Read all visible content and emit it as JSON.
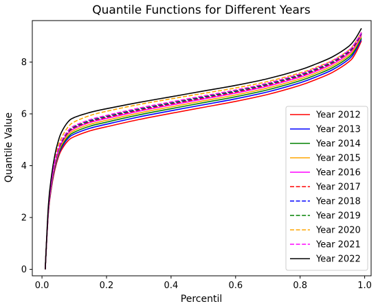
{
  "chart_data": {
    "type": "line",
    "title": "Quantile Functions for Different Years",
    "xlabel": "Percentil",
    "ylabel": "Quantile Value",
    "xlim": [
      -0.03,
      1.02
    ],
    "ylim": [
      -0.25,
      9.6
    ],
    "xticks": [
      0.0,
      0.2,
      0.4,
      0.6,
      0.8,
      1.0
    ],
    "xtick_labels": [
      "0.0",
      "0.2",
      "0.4",
      "0.6",
      "0.8",
      "1.0"
    ],
    "yticks": [
      0,
      2,
      4,
      6,
      8
    ],
    "ytick_labels": [
      "0",
      "2",
      "4",
      "6",
      "8"
    ],
    "grid": false,
    "legend_position": "lower-right",
    "x": [
      0.01,
      0.02,
      0.03,
      0.04,
      0.05,
      0.06,
      0.08,
      0.1,
      0.15,
      0.2,
      0.3,
      0.4,
      0.5,
      0.6,
      0.7,
      0.8,
      0.85,
      0.9,
      0.95,
      0.97,
      0.99
    ],
    "series": [
      {
        "name": "Year 2012",
        "color": "#ff0000",
        "dash": "solid",
        "values": [
          0.0,
          2.2,
          3.2,
          3.85,
          4.3,
          4.6,
          4.95,
          5.12,
          5.35,
          5.5,
          5.78,
          6.02,
          6.25,
          6.48,
          6.75,
          7.1,
          7.33,
          7.6,
          8.0,
          8.3,
          8.82
        ]
      },
      {
        "name": "Year 2013",
        "color": "#0000ff",
        "dash": "solid",
        "values": [
          0.0,
          2.25,
          3.27,
          3.93,
          4.38,
          4.68,
          5.04,
          5.22,
          5.45,
          5.6,
          5.88,
          6.12,
          6.35,
          6.58,
          6.85,
          7.2,
          7.43,
          7.7,
          8.1,
          8.4,
          8.88
        ]
      },
      {
        "name": "Year 2014",
        "color": "#008000",
        "dash": "solid",
        "values": [
          0.0,
          2.28,
          3.31,
          3.98,
          4.43,
          4.74,
          5.1,
          5.29,
          5.53,
          5.68,
          5.96,
          6.2,
          6.43,
          6.66,
          6.93,
          7.28,
          7.51,
          7.78,
          8.18,
          8.47,
          8.94
        ]
      },
      {
        "name": "Year 2015",
        "color": "#ffa500",
        "dash": "solid",
        "values": [
          0.0,
          2.31,
          3.35,
          4.03,
          4.48,
          4.8,
          5.17,
          5.36,
          5.6,
          5.75,
          6.03,
          6.27,
          6.5,
          6.73,
          7.0,
          7.35,
          7.58,
          7.85,
          8.25,
          8.54,
          9.0
        ]
      },
      {
        "name": "Year 2016",
        "color": "#ff00ff",
        "dash": "solid",
        "values": [
          0.0,
          2.34,
          3.39,
          4.08,
          4.54,
          4.86,
          5.24,
          5.43,
          5.67,
          5.82,
          6.1,
          6.34,
          6.57,
          6.8,
          7.07,
          7.42,
          7.65,
          7.92,
          8.32,
          8.61,
          9.05
        ]
      },
      {
        "name": "Year 2017",
        "color": "#ff0000",
        "dash": "dashed",
        "values": [
          0.0,
          2.35,
          3.4,
          4.1,
          4.56,
          4.88,
          5.26,
          5.46,
          5.7,
          5.86,
          6.14,
          6.38,
          6.61,
          6.84,
          7.11,
          7.46,
          7.69,
          7.96,
          8.36,
          8.65,
          9.08
        ]
      },
      {
        "name": "Year 2018",
        "color": "#0000ff",
        "dash": "dashed",
        "values": [
          0.0,
          2.36,
          3.42,
          4.12,
          4.58,
          4.9,
          5.29,
          5.49,
          5.73,
          5.89,
          6.17,
          6.41,
          6.64,
          6.87,
          7.14,
          7.49,
          7.72,
          7.99,
          8.39,
          8.68,
          9.1
        ]
      },
      {
        "name": "Year 2019",
        "color": "#008000",
        "dash": "dashed",
        "values": [
          0.0,
          2.37,
          3.43,
          4.14,
          4.6,
          4.92,
          5.31,
          5.51,
          5.75,
          5.91,
          6.19,
          6.43,
          6.66,
          6.89,
          7.16,
          7.51,
          7.74,
          8.01,
          8.41,
          8.7,
          9.12
        ]
      },
      {
        "name": "Year 2020",
        "color": "#ffa500",
        "dash": "dashed",
        "values": [
          0.0,
          2.42,
          3.52,
          4.25,
          4.74,
          5.07,
          5.48,
          5.69,
          5.94,
          6.1,
          6.36,
          6.58,
          6.79,
          7.0,
          7.25,
          7.58,
          7.8,
          8.06,
          8.45,
          8.74,
          9.15
        ]
      },
      {
        "name": "Year 2021",
        "color": "#ff00ff",
        "dash": "dashed",
        "values": [
          0.0,
          2.38,
          3.45,
          4.16,
          4.62,
          4.95,
          5.34,
          5.54,
          5.78,
          5.94,
          6.22,
          6.46,
          6.69,
          6.92,
          7.19,
          7.54,
          7.77,
          8.04,
          8.44,
          8.73,
          9.14
        ]
      },
      {
        "name": "Year 2022",
        "color": "#000000",
        "dash": "solid",
        "values": [
          0.0,
          2.5,
          3.65,
          4.42,
          4.93,
          5.28,
          5.68,
          5.86,
          6.06,
          6.2,
          6.44,
          6.66,
          6.88,
          7.1,
          7.36,
          7.7,
          7.93,
          8.2,
          8.6,
          8.88,
          9.3
        ]
      }
    ]
  }
}
